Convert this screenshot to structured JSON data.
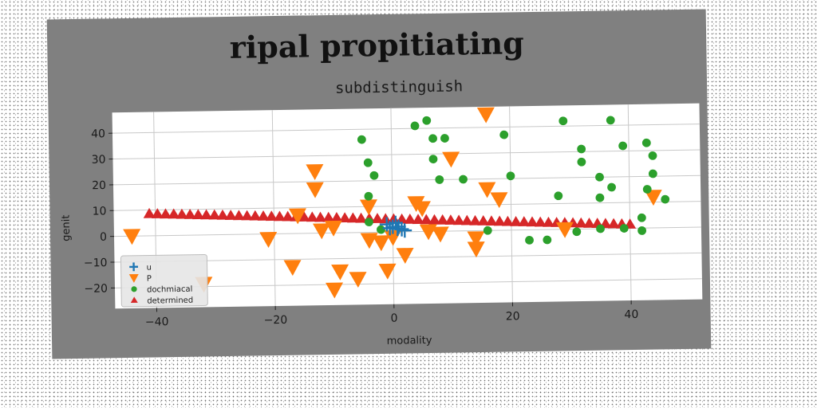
{
  "chart_data": {
    "type": "scatter",
    "title": "ripal propitiating",
    "subtitle": "subdistinguish",
    "xlabel": "modality",
    "ylabel": "genit",
    "xlim": [
      -47,
      52
    ],
    "ylim": [
      -28,
      48
    ],
    "xticks": [
      -40,
      -20,
      0,
      20,
      40
    ],
    "yticks": [
      -20,
      -10,
      0,
      10,
      20,
      30,
      40
    ],
    "grid": true,
    "legend_position": "lower-left",
    "series": [
      {
        "name": "u",
        "marker": "plus",
        "color": "#1f77b4",
        "points": [
          [
            -1,
            3
          ],
          [
            0,
            2
          ],
          [
            0.5,
            3.5
          ],
          [
            1,
            2
          ],
          [
            1.5,
            1
          ],
          [
            2,
            0.5
          ],
          [
            -0.5,
            1.5
          ],
          [
            0.8,
            1.2
          ]
        ]
      },
      {
        "name": "P",
        "marker": "triangle-down",
        "color": "#ff7f0e",
        "points": [
          [
            -44,
            0
          ],
          [
            -32,
            -19
          ],
          [
            -21,
            -2
          ],
          [
            -17,
            -13
          ],
          [
            -16,
            7
          ],
          [
            -13,
            24
          ],
          [
            -13,
            17
          ],
          [
            -12,
            1
          ],
          [
            -10,
            2
          ],
          [
            -10,
            -22
          ],
          [
            -9,
            -15
          ],
          [
            -6,
            -18
          ],
          [
            -4,
            10
          ],
          [
            -4,
            -3
          ],
          [
            -2,
            -4
          ],
          [
            -1,
            -15
          ],
          [
            0,
            -2
          ],
          [
            2,
            -9
          ],
          [
            4,
            11
          ],
          [
            5,
            9
          ],
          [
            6,
            0
          ],
          [
            8,
            -1
          ],
          [
            10,
            28
          ],
          [
            14,
            -3
          ],
          [
            14,
            -7
          ],
          [
            16,
            16
          ],
          [
            16,
            45
          ],
          [
            18,
            12
          ],
          [
            29,
            0
          ],
          [
            44,
            12
          ]
        ]
      },
      {
        "name": "dochmiacal",
        "marker": "circle",
        "color": "#2ca02c",
        "points": [
          [
            -5,
            36
          ],
          [
            -4,
            27
          ],
          [
            -3,
            22
          ],
          [
            -4,
            14
          ],
          [
            -4,
            4
          ],
          [
            -2,
            1
          ],
          [
            4,
            41
          ],
          [
            6,
            43
          ],
          [
            7,
            36
          ],
          [
            7,
            28
          ],
          [
            8,
            20
          ],
          [
            9,
            36
          ],
          [
            12,
            20
          ],
          [
            16,
            0
          ],
          [
            19,
            37
          ],
          [
            20,
            21
          ],
          [
            23,
            -4
          ],
          [
            26,
            -4
          ],
          [
            28,
            13
          ],
          [
            29,
            42
          ],
          [
            31,
            -1
          ],
          [
            32,
            31
          ],
          [
            32,
            26
          ],
          [
            35,
            20
          ],
          [
            35,
            12
          ],
          [
            35,
            0
          ],
          [
            37,
            16
          ],
          [
            37,
            42
          ],
          [
            39,
            32
          ],
          [
            39,
            0
          ],
          [
            42,
            -1
          ],
          [
            42,
            4
          ],
          [
            43,
            33
          ],
          [
            43,
            15
          ],
          [
            44,
            28
          ],
          [
            44,
            21
          ],
          [
            46,
            11
          ]
        ]
      },
      {
        "name": "determined",
        "marker": "triangle-up",
        "color": "#d62728",
        "line": {
          "x0": -41,
          "y0": 8.5,
          "x1": 40,
          "y1": 1.5,
          "n": 60
        }
      }
    ]
  }
}
